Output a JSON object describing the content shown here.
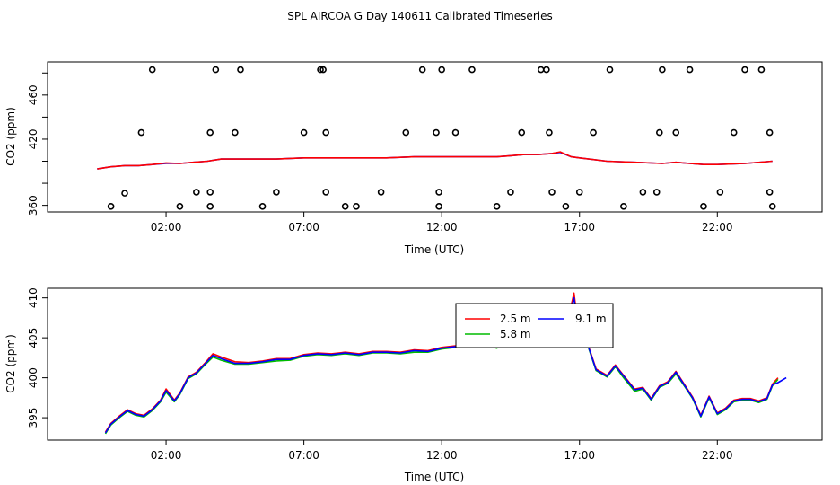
{
  "title": "SPL AIRCOA G  Day 140611  Calibrated Timeseries",
  "chart_data": [
    {
      "type": "scatter",
      "xlabel": "Time (UTC)",
      "ylabel": "CO2 (ppm)",
      "x_unit": "hours UTC",
      "xlim": [
        -2.3,
        25.8
      ],
      "ylim": [
        354,
        490
      ],
      "x_ticks": [
        2,
        7,
        12,
        17,
        22
      ],
      "x_tick_labels": [
        "02:00",
        "07:00",
        "12:00",
        "17:00",
        "22:00"
      ],
      "y_ticks": [
        360,
        380,
        400,
        420,
        440,
        460,
        480
      ],
      "y_tick_labels": [
        "360",
        "",
        "",
        "420",
        "",
        "460",
        ""
      ],
      "grid": false,
      "legend": "none",
      "series": [
        {
          "color": "#0000ff",
          "x": [
            -0.5,
            0.0,
            0.5,
            1.0,
            1.5,
            2.0,
            2.5,
            3.0,
            3.5,
            4.0,
            4.5,
            5.0,
            6.0,
            7.0,
            8.0,
            9.0,
            10.0,
            11.0,
            12.0,
            13.0,
            14.0,
            14.5,
            15.0,
            15.5,
            16.0,
            16.3,
            16.7,
            17.0,
            18.0,
            19.0,
            20.0,
            20.5,
            21.0,
            21.5,
            22.0,
            23.0,
            24.0
          ],
          "y": [
            393,
            395,
            396,
            396,
            397,
            398,
            398,
            399,
            400,
            402,
            402,
            402,
            402,
            403,
            403,
            403,
            403,
            404,
            404,
            404,
            404,
            405,
            406,
            406,
            407,
            408,
            404,
            403,
            400,
            399,
            398,
            399,
            398,
            397,
            397,
            398,
            400
          ]
        },
        {
          "color": "#ff0000",
          "x": [
            -0.5,
            0.0,
            0.5,
            1.0,
            1.5,
            2.0,
            2.5,
            3.0,
            3.5,
            4.0,
            4.5,
            5.0,
            6.0,
            7.0,
            8.0,
            9.0,
            10.0,
            11.0,
            12.0,
            13.0,
            14.0,
            14.5,
            15.0,
            15.5,
            16.0,
            16.3,
            16.7,
            17.0,
            18.0,
            19.0,
            20.0,
            20.5,
            21.0,
            21.5,
            22.0,
            23.0,
            24.0
          ],
          "y": [
            393,
            395,
            396,
            396,
            397,
            398.5,
            398,
            399,
            400,
            402,
            402,
            402,
            402,
            403,
            403,
            403,
            403,
            404,
            404,
            404,
            404,
            405,
            406,
            406,
            407,
            408.5,
            404,
            403,
            400,
            399,
            398,
            399,
            398,
            397,
            397,
            398,
            400
          ]
        }
      ],
      "outliers": {
        "x": [
          0.0,
          0.5,
          1.1,
          1.5,
          2.5,
          3.1,
          3.6,
          3.6,
          3.6,
          3.8,
          4.5,
          4.7,
          5.5,
          6.0,
          7.0,
          7.6,
          7.7,
          7.8,
          7.8,
          8.5,
          8.9,
          9.8,
          10.7,
          11.3,
          11.8,
          11.9,
          11.9,
          12.0,
          12.5,
          13.1,
          14.0,
          14.5,
          14.9,
          15.6,
          15.8,
          15.9,
          16.0,
          16.5,
          17.0,
          17.5,
          18.1,
          18.6,
          19.3,
          19.8,
          19.9,
          20.0,
          20.5,
          21.0,
          21.5,
          22.1,
          22.6,
          23.0,
          23.6,
          23.9,
          23.9,
          24.0
        ],
        "y": [
          359,
          371,
          426,
          483,
          359,
          372,
          359,
          372,
          426,
          483,
          426,
          483,
          359,
          372,
          426,
          483,
          483,
          426,
          372,
          359,
          359,
          372,
          426,
          483,
          426,
          359,
          372,
          483,
          426,
          483,
          359,
          372,
          426,
          483,
          483,
          426,
          372,
          359,
          372,
          426,
          483,
          359,
          372,
          372,
          426,
          483,
          426,
          483,
          359,
          372,
          426,
          483,
          483,
          426,
          372,
          359
        ]
      }
    },
    {
      "type": "line",
      "xlabel": "Time (UTC)",
      "ylabel": "CO2 (ppm)",
      "x_unit": "hours UTC",
      "xlim": [
        -2.3,
        25.8
      ],
      "ylim": [
        392.2,
        411.2
      ],
      "x_ticks": [
        2,
        7,
        12,
        17,
        22
      ],
      "x_tick_labels": [
        "02:00",
        "07:00",
        "12:00",
        "17:00",
        "22:00"
      ],
      "y_ticks": [
        395,
        400,
        405,
        410
      ],
      "y_tick_labels": [
        "395",
        "400",
        "405",
        "410"
      ],
      "grid": false,
      "legend": "top-right",
      "series": [
        {
          "name": "2.5 m",
          "color": "#ff0000",
          "x": [
            -0.2,
            0.0,
            0.3,
            0.6,
            0.9,
            1.2,
            1.5,
            1.8,
            2.0,
            2.3,
            2.5,
            2.8,
            3.1,
            3.4,
            3.7,
            4.0,
            4.5,
            5.0,
            5.5,
            6.0,
            6.5,
            7.0,
            7.5,
            8.0,
            8.5,
            9.0,
            9.5,
            10.0,
            10.5,
            11.0,
            11.5,
            12.0,
            12.5,
            13.0,
            13.5,
            14.0,
            14.5,
            14.8,
            15.0,
            15.3,
            15.5,
            15.8,
            16.0,
            16.2,
            16.4,
            16.6,
            16.8,
            17.0,
            17.3,
            17.6,
            18.0,
            18.3,
            18.6,
            19.0,
            19.3,
            19.6,
            19.9,
            20.2,
            20.5,
            20.8,
            21.1,
            21.4,
            21.7,
            22.0,
            22.3,
            22.6,
            22.9,
            23.2,
            23.5,
            23.8,
            24.0,
            24.2
          ],
          "y": [
            393.2,
            394.3,
            395.2,
            396.0,
            395.5,
            395.3,
            396.1,
            397.2,
            398.6,
            397.2,
            398.1,
            400.1,
            400.7,
            401.8,
            403.0,
            402.6,
            402.0,
            401.9,
            402.1,
            402.4,
            402.4,
            402.9,
            403.1,
            403.0,
            403.2,
            403.0,
            403.3,
            403.3,
            403.2,
            403.5,
            403.4,
            403.8,
            404.0,
            404.3,
            404.4,
            404.0,
            404.8,
            406.2,
            407.0,
            405.3,
            405.0,
            407.6,
            407.5,
            407.3,
            407.3,
            407.6,
            410.6,
            405.0,
            404.2,
            401.1,
            400.3,
            401.6,
            400.3,
            398.6,
            398.8,
            397.4,
            399.0,
            399.5,
            400.8,
            399.2,
            397.6,
            395.3,
            397.7,
            395.6,
            396.2,
            397.2,
            397.4,
            397.4,
            397.1,
            397.5,
            399.2,
            400.0
          ]
        },
        {
          "name": "5.8 m",
          "color": "#00bb00",
          "x": [
            -0.2,
            0.0,
            0.3,
            0.6,
            0.9,
            1.2,
            1.5,
            1.8,
            2.0,
            2.3,
            2.5,
            2.8,
            3.1,
            3.4,
            3.7,
            4.0,
            4.5,
            5.0,
            5.5,
            6.0,
            6.5,
            7.0,
            7.5,
            8.0,
            8.5,
            9.0,
            9.5,
            10.0,
            10.5,
            11.0,
            11.5,
            12.0,
            12.5,
            13.0,
            13.5,
            14.0,
            14.5,
            14.8,
            15.0,
            15.3,
            15.5,
            15.8,
            16.0,
            16.2,
            16.4,
            16.6,
            16.8,
            17.0,
            17.3,
            17.6,
            18.0,
            18.3,
            18.6,
            19.0,
            19.3,
            19.6,
            19.9,
            20.2,
            20.5,
            20.8,
            21.1,
            21.4,
            21.7,
            22.0,
            22.3,
            22.6,
            22.9,
            23.2,
            23.5,
            23.8,
            24.0,
            24.2
          ],
          "y": [
            393.0,
            394.1,
            395.0,
            395.8,
            395.3,
            395.1,
            395.9,
            397.0,
            398.2,
            397.0,
            397.9,
            399.9,
            400.5,
            401.6,
            402.6,
            402.2,
            401.7,
            401.7,
            401.9,
            402.1,
            402.2,
            402.7,
            402.9,
            402.8,
            403.0,
            402.8,
            403.1,
            403.1,
            403.0,
            403.2,
            403.2,
            403.6,
            403.8,
            404.1,
            404.2,
            403.7,
            404.6,
            406.0,
            406.8,
            405.0,
            404.6,
            407.4,
            407.2,
            407.0,
            407.0,
            407.2,
            409.0,
            404.7,
            404.0,
            400.9,
            400.1,
            401.4,
            400.0,
            398.3,
            398.6,
            397.2,
            398.8,
            399.3,
            400.5,
            399.0,
            397.4,
            395.1,
            397.5,
            395.4,
            396.0,
            397.0,
            397.2,
            397.2,
            396.9,
            397.3,
            399.0,
            399.8
          ]
        },
        {
          "name": "9.1 m",
          "color": "#0000ff",
          "x": [
            -0.2,
            0.0,
            0.3,
            0.6,
            0.9,
            1.2,
            1.5,
            1.8,
            2.0,
            2.3,
            2.5,
            2.8,
            3.1,
            3.4,
            3.7,
            4.0,
            4.5,
            5.0,
            5.5,
            6.0,
            6.5,
            7.0,
            7.5,
            8.0,
            8.5,
            9.0,
            9.5,
            10.0,
            10.5,
            11.0,
            11.5,
            12.0,
            12.5,
            13.0,
            13.5,
            14.0,
            14.5,
            14.8,
            15.0,
            15.3,
            15.5,
            15.8,
            16.0,
            16.2,
            16.4,
            16.6,
            16.8,
            17.0,
            17.3,
            17.6,
            18.0,
            18.3,
            18.6,
            19.0,
            19.3,
            19.6,
            19.9,
            20.2,
            20.5,
            20.8,
            21.1,
            21.4,
            21.7,
            22.0,
            22.3,
            22.6,
            22.9,
            23.2,
            23.5,
            23.8,
            24.0,
            24.2,
            24.5
          ],
          "y": [
            393.1,
            394.2,
            395.1,
            395.9,
            395.4,
            395.2,
            396.0,
            397.1,
            398.4,
            397.1,
            398.0,
            400.0,
            400.6,
            401.7,
            402.8,
            402.4,
            401.8,
            401.8,
            402.0,
            402.3,
            402.3,
            402.8,
            403.0,
            402.9,
            403.1,
            402.9,
            403.2,
            403.2,
            403.1,
            403.4,
            403.3,
            403.7,
            403.9,
            404.2,
            404.3,
            403.9,
            404.7,
            406.1,
            406.9,
            405.2,
            404.8,
            407.5,
            407.4,
            407.2,
            407.2,
            407.4,
            410.0,
            404.9,
            404.1,
            401.0,
            400.2,
            401.5,
            400.2,
            398.5,
            398.7,
            397.3,
            398.9,
            399.4,
            400.7,
            399.1,
            397.5,
            395.2,
            397.6,
            395.5,
            396.1,
            397.1,
            397.3,
            397.3,
            397.0,
            397.4,
            399.1,
            399.4,
            400.0
          ]
        }
      ]
    }
  ]
}
